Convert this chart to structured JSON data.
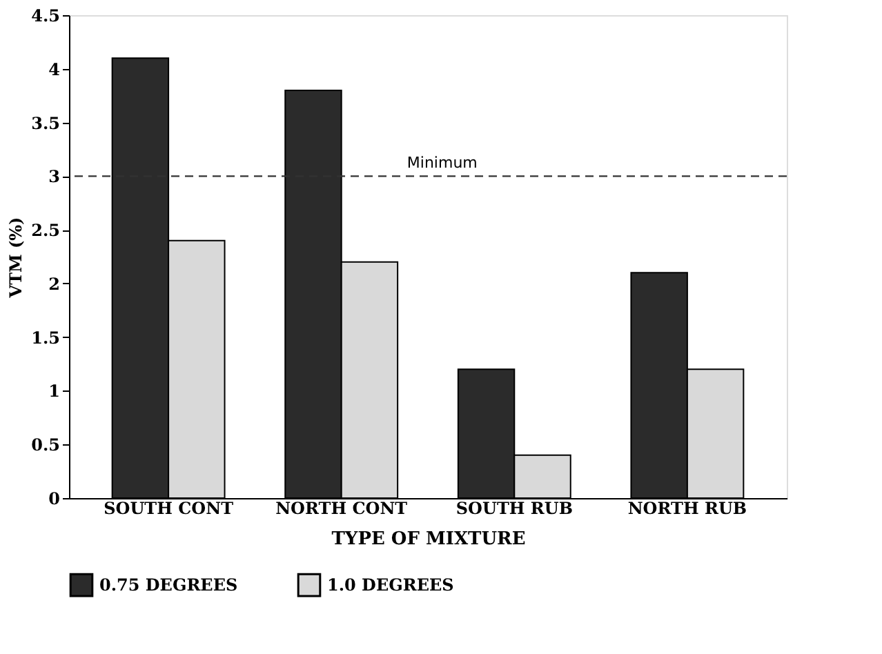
{
  "chart_data": {
    "type": "bar",
    "xlabel": "TYPE OF MIXTURE",
    "ylabel": "VTM (%)",
    "categories": [
      "SOUTH CONT",
      "NORTH CONT",
      "SOUTH RUB",
      "NORTH RUB"
    ],
    "series": [
      {
        "name": "0.75 DEGREES",
        "color": "#2b2b2b",
        "values": [
          4.1,
          3.8,
          1.2,
          2.1
        ]
      },
      {
        "name": "1.0 DEGREES",
        "color": "#d9d9d9",
        "values": [
          2.4,
          2.2,
          0.4,
          1.2
        ]
      }
    ],
    "ylim": [
      0,
      4.5
    ],
    "yticks": [
      0,
      0.5,
      1,
      1.5,
      2,
      2.5,
      3,
      3.5,
      4,
      4.5
    ],
    "ref_lines": [
      {
        "axis": "y",
        "value": 3,
        "label": "Minimum",
        "line_style": "dashed",
        "color": "#333333"
      }
    ],
    "grid": false,
    "legend": "bottom"
  }
}
